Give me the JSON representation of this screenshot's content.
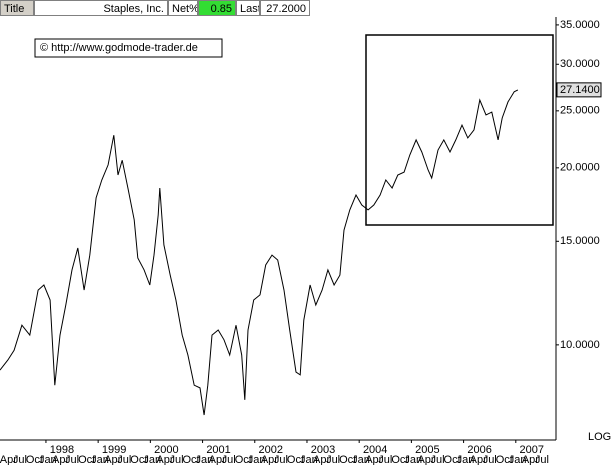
{
  "header": {
    "title_label": "Title",
    "name": "Staples, Inc.",
    "net_label": "Net%",
    "net_value": "0.85",
    "last_label": "Last",
    "last_value": "27.2000"
  },
  "chart_data": {
    "type": "line",
    "log_scale": true,
    "color": "#000000",
    "annotation": "© http://www.godmode-trader.de",
    "scale_label": "LOG",
    "last_label": {
      "value": 27.14,
      "label": "27.1400"
    },
    "xlim": [
      1997.12,
      2007.77
    ],
    "ylim": [
      6.89,
      36.1
    ],
    "yticks": [
      {
        "value": 35,
        "label": "35.0000"
      },
      {
        "value": 30,
        "label": "30.0000"
      },
      {
        "value": 25,
        "label": "25.0000"
      },
      {
        "value": 20,
        "label": "20.0000"
      },
      {
        "value": 15,
        "label": "15.0000"
      },
      {
        "value": 10,
        "label": "10.0000"
      }
    ],
    "xticks": [
      1998,
      1999,
      2000,
      2001,
      2002,
      2003,
      2004,
      2005,
      2006,
      2007
    ],
    "month_ticks": [
      {
        "value": 1997.25,
        "label": "Apr"
      },
      {
        "value": 1997.5,
        "label": "Jul"
      },
      {
        "value": 1997.75,
        "label": "Oct"
      },
      {
        "value": 1998,
        "label": "Jan"
      },
      {
        "value": 1998.25,
        "label": "Apr"
      },
      {
        "value": 1998.5,
        "label": "Jul"
      },
      {
        "value": 1998.75,
        "label": "Oct"
      },
      {
        "value": 1999,
        "label": "Jan"
      },
      {
        "value": 1999.25,
        "label": "Apr"
      },
      {
        "value": 1999.5,
        "label": "Jul"
      },
      {
        "value": 1999.75,
        "label": "Oct"
      },
      {
        "value": 2000,
        "label": "Jan"
      },
      {
        "value": 2000.25,
        "label": "Apr"
      },
      {
        "value": 2000.5,
        "label": "Jul"
      },
      {
        "value": 2000.75,
        "label": "Oct"
      },
      {
        "value": 2001,
        "label": "Jan"
      },
      {
        "value": 2001.25,
        "label": "Apr"
      },
      {
        "value": 2001.5,
        "label": "Jul"
      },
      {
        "value": 2001.75,
        "label": "Oct"
      },
      {
        "value": 2002,
        "label": "Jan"
      },
      {
        "value": 2002.25,
        "label": "Apr"
      },
      {
        "value": 2002.5,
        "label": "Jul"
      },
      {
        "value": 2002.75,
        "label": "Oct"
      },
      {
        "value": 2003,
        "label": "Jan"
      },
      {
        "value": 2003.25,
        "label": "Apr"
      },
      {
        "value": 2003.5,
        "label": "Jul"
      },
      {
        "value": 2003.75,
        "label": "Oct"
      },
      {
        "value": 2004,
        "label": "Jan"
      },
      {
        "value": 2004.25,
        "label": "Apr"
      },
      {
        "value": 2004.5,
        "label": "Jul"
      },
      {
        "value": 2004.75,
        "label": "Oct"
      },
      {
        "value": 2005,
        "label": "Jan"
      },
      {
        "value": 2005.25,
        "label": "Apr"
      },
      {
        "value": 2005.5,
        "label": "Jul"
      },
      {
        "value": 2005.75,
        "label": "Oct"
      },
      {
        "value": 2006,
        "label": "Jan"
      },
      {
        "value": 2006.25,
        "label": "Apr"
      },
      {
        "value": 2006.5,
        "label": "Jul"
      },
      {
        "value": 2006.75,
        "label": "Oct"
      },
      {
        "value": 2007,
        "label": "Jan"
      },
      {
        "value": 2007.25,
        "label": "Apr"
      },
      {
        "value": 2007.5,
        "label": "Jul"
      }
    ],
    "x": [
      1997.12,
      1997.27,
      1997.39,
      1997.54,
      1997.69,
      1997.85,
      1997.96,
      1998.08,
      1998.17,
      1998.27,
      1998.38,
      1998.5,
      1998.61,
      1998.73,
      1998.84,
      1998.96,
      1999.07,
      1999.19,
      1999.3,
      1999.38,
      1999.46,
      1999.57,
      1999.69,
      1999.76,
      1999.88,
      1999.99,
      2000.07,
      2000.15,
      2000.18,
      2000.26,
      2000.38,
      2000.49,
      2000.61,
      2000.72,
      2000.84,
      2000.95,
      2001.03,
      2001.1,
      2001.18,
      2001.3,
      2001.41,
      2001.52,
      2001.64,
      2001.75,
      2001.81,
      2001.87,
      2001.98,
      2002.1,
      2002.21,
      2002.33,
      2002.44,
      2002.56,
      2002.67,
      2002.79,
      2002.87,
      2002.94,
      2003.06,
      2003.17,
      2003.29,
      2003.4,
      2003.52,
      2003.63,
      2003.71,
      2003.82,
      2003.94,
      2004.05,
      2004.17,
      2004.28,
      2004.4,
      2004.51,
      2004.63,
      2004.74,
      2004.86,
      2004.97,
      2005.09,
      2005.2,
      2005.32,
      2005.39,
      2005.51,
      2005.62,
      2005.74,
      2005.85,
      2005.97,
      2006.08,
      2006.2,
      2006.31,
      2006.43,
      2006.54,
      2006.66,
      2006.74,
      2006.85,
      2006.97,
      2007.04
    ],
    "values": [
      9.06,
      9.42,
      9.79,
      10.8,
      10.39,
      12.39,
      12.64,
      11.92,
      8.54,
      10.39,
      11.69,
      13.41,
      14.61,
      12.39,
      14.21,
      17.78,
      19.07,
      20.23,
      22.73,
      19.45,
      20.61,
      18.48,
      16.32,
      14.05,
      13.41,
      12.64,
      14.21,
      16.63,
      18.48,
      14.79,
      13.14,
      11.92,
      10.39,
      9.61,
      8.54,
      8.45,
      7.6,
      8.54,
      10.39,
      10.6,
      10.2,
      9.61,
      10.8,
      9.61,
      8.06,
      10.6,
      11.92,
      12.16,
      13.67,
      14.21,
      13.94,
      12.39,
      10.6,
      8.99,
      8.89,
      11.02,
      12.64,
      11.69,
      12.39,
      13.41,
      12.64,
      13.14,
      15.67,
      16.96,
      17.98,
      17.29,
      16.96,
      17.29,
      17.98,
      19.07,
      18.48,
      19.45,
      19.67,
      21.03,
      22.31,
      21.28,
      19.83,
      19.22,
      21.45,
      22.31,
      21.28,
      22.31,
      23.64,
      22.49,
      23.2,
      26.08,
      24.6,
      24.88,
      22.31,
      24.31,
      25.89,
      26.93,
      27.14
    ]
  }
}
